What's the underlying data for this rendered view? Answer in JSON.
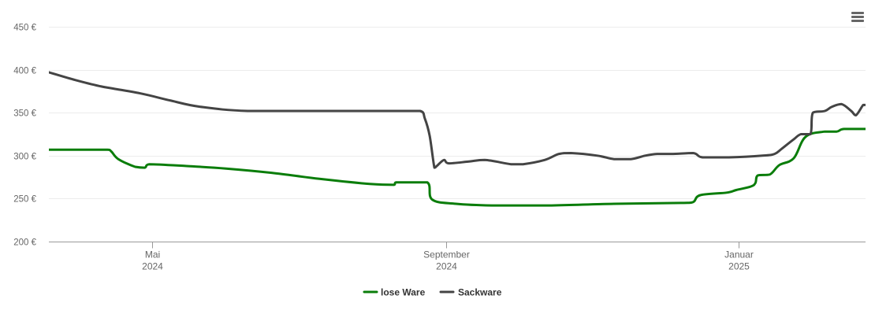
{
  "menu": {
    "icon": "hamburger-menu-icon"
  },
  "chart_data": {
    "type": "line",
    "title": "",
    "xlabel": "",
    "ylabel": "",
    "ylim": [
      200,
      450
    ],
    "yticks": [
      {
        "value": 200,
        "label": "200 €"
      },
      {
        "value": 250,
        "label": "250 €"
      },
      {
        "value": 300,
        "label": "300 €"
      },
      {
        "value": 350,
        "label": "350 €"
      },
      {
        "value": 400,
        "label": "400 €"
      },
      {
        "value": 450,
        "label": "450 €"
      }
    ],
    "xlim": [
      "2024-03-19",
      "2025-02-23"
    ],
    "xticks": [
      {
        "date": "2024-05-01",
        "line1": "Mai",
        "line2": "2024"
      },
      {
        "date": "2024-09-01",
        "line1": "September",
        "line2": "2024"
      },
      {
        "date": "2025-01-01",
        "line1": "Januar",
        "line2": "2025"
      }
    ],
    "grid": true,
    "legend_position": "bottom-center",
    "series": [
      {
        "name": "lose Ware",
        "color": "#0a7d0a",
        "points": [
          [
            "2024-03-19",
            307
          ],
          [
            "2024-04-12",
            307
          ],
          [
            "2024-04-14",
            305
          ],
          [
            "2024-04-17",
            296
          ],
          [
            "2024-04-24",
            287
          ],
          [
            "2024-04-28",
            286
          ],
          [
            "2024-04-30",
            290
          ],
          [
            "2024-05-15",
            288
          ],
          [
            "2024-06-01",
            285
          ],
          [
            "2024-06-20",
            280
          ],
          [
            "2024-07-10",
            273
          ],
          [
            "2024-07-31",
            267
          ],
          [
            "2024-08-10",
            266
          ],
          [
            "2024-08-11",
            269
          ],
          [
            "2024-08-24",
            269
          ],
          [
            "2024-08-26",
            249
          ],
          [
            "2024-09-05",
            244
          ],
          [
            "2024-09-20",
            242
          ],
          [
            "2024-10-15",
            242
          ],
          [
            "2024-11-10",
            244
          ],
          [
            "2024-12-08",
            245
          ],
          [
            "2024-12-13",
            246
          ],
          [
            "2024-12-16",
            254
          ],
          [
            "2024-12-27",
            257
          ],
          [
            "2024-12-31",
            260
          ],
          [
            "2025-01-06",
            264
          ],
          [
            "2025-01-08",
            268
          ],
          [
            "2025-01-09",
            277
          ],
          [
            "2025-01-14",
            278
          ],
          [
            "2025-01-18",
            289
          ],
          [
            "2025-01-24",
            297
          ],
          [
            "2025-01-29",
            322
          ],
          [
            "2025-02-06",
            328
          ],
          [
            "2025-02-11",
            328
          ],
          [
            "2025-02-14",
            331
          ],
          [
            "2025-02-23",
            331
          ]
        ]
      },
      {
        "name": "Sackware",
        "color": "#444444",
        "points": [
          [
            "2024-03-19",
            397
          ],
          [
            "2024-03-30",
            388
          ],
          [
            "2024-04-09",
            381
          ],
          [
            "2024-04-15",
            378
          ],
          [
            "2024-04-27",
            372
          ],
          [
            "2024-05-09",
            364
          ],
          [
            "2024-05-21",
            357
          ],
          [
            "2024-06-10",
            352
          ],
          [
            "2024-07-15",
            352
          ],
          [
            "2024-08-10",
            352
          ],
          [
            "2024-08-21",
            352
          ],
          [
            "2024-08-23",
            343
          ],
          [
            "2024-08-25",
            323
          ],
          [
            "2024-08-27",
            286
          ],
          [
            "2024-08-28",
            288
          ],
          [
            "2024-08-31",
            295
          ],
          [
            "2024-09-02",
            291
          ],
          [
            "2024-09-10",
            293
          ],
          [
            "2024-09-17",
            295
          ],
          [
            "2024-09-28",
            290
          ],
          [
            "2024-10-03",
            290
          ],
          [
            "2024-10-12",
            295
          ],
          [
            "2024-10-18",
            302
          ],
          [
            "2024-10-23",
            303
          ],
          [
            "2024-11-03",
            300
          ],
          [
            "2024-11-10",
            296
          ],
          [
            "2024-11-17",
            296
          ],
          [
            "2024-11-23",
            300
          ],
          [
            "2024-11-28",
            302
          ],
          [
            "2024-12-04",
            302
          ],
          [
            "2024-12-13",
            303
          ],
          [
            "2024-12-17",
            298
          ],
          [
            "2024-12-28",
            298
          ],
          [
            "2025-01-11",
            300
          ],
          [
            "2025-01-16",
            302
          ],
          [
            "2025-01-19",
            308
          ],
          [
            "2025-01-24",
            319
          ],
          [
            "2025-01-27",
            325
          ],
          [
            "2025-01-31",
            325
          ],
          [
            "2025-02-01",
            350
          ],
          [
            "2025-02-06",
            352
          ],
          [
            "2025-02-09",
            357
          ],
          [
            "2025-02-13",
            360
          ],
          [
            "2025-02-17",
            352
          ],
          [
            "2025-02-19",
            347
          ],
          [
            "2025-02-22",
            359
          ],
          [
            "2025-02-23",
            359
          ]
        ]
      }
    ]
  }
}
